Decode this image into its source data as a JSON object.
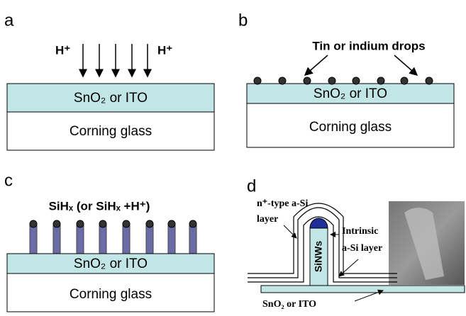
{
  "panels": [
    {
      "label": "a",
      "ion_left": "H⁺",
      "ion_right": "H⁺",
      "layer_top": "SnO₂ or ITO",
      "layer_bottom": "Corning glass"
    },
    {
      "label": "b",
      "annotation": "Tin or indium drops",
      "layer_top": "SnO₂ or ITO",
      "layer_bottom": "Corning glass"
    },
    {
      "label": "c",
      "annotation": "SiHₓ (or SiHₓ +H⁺)",
      "layer_top": "SnO₂ or ITO",
      "layer_bottom": "Corning glass"
    },
    {
      "label": "d",
      "outer_layer": [
        "n⁺-type a-Si",
        "layer"
      ],
      "inner_layer": [
        "Intrinsic",
        "a-Si layer"
      ],
      "wire": "SiNWs",
      "substrate": "SnO₂ or ITO"
    }
  ]
}
